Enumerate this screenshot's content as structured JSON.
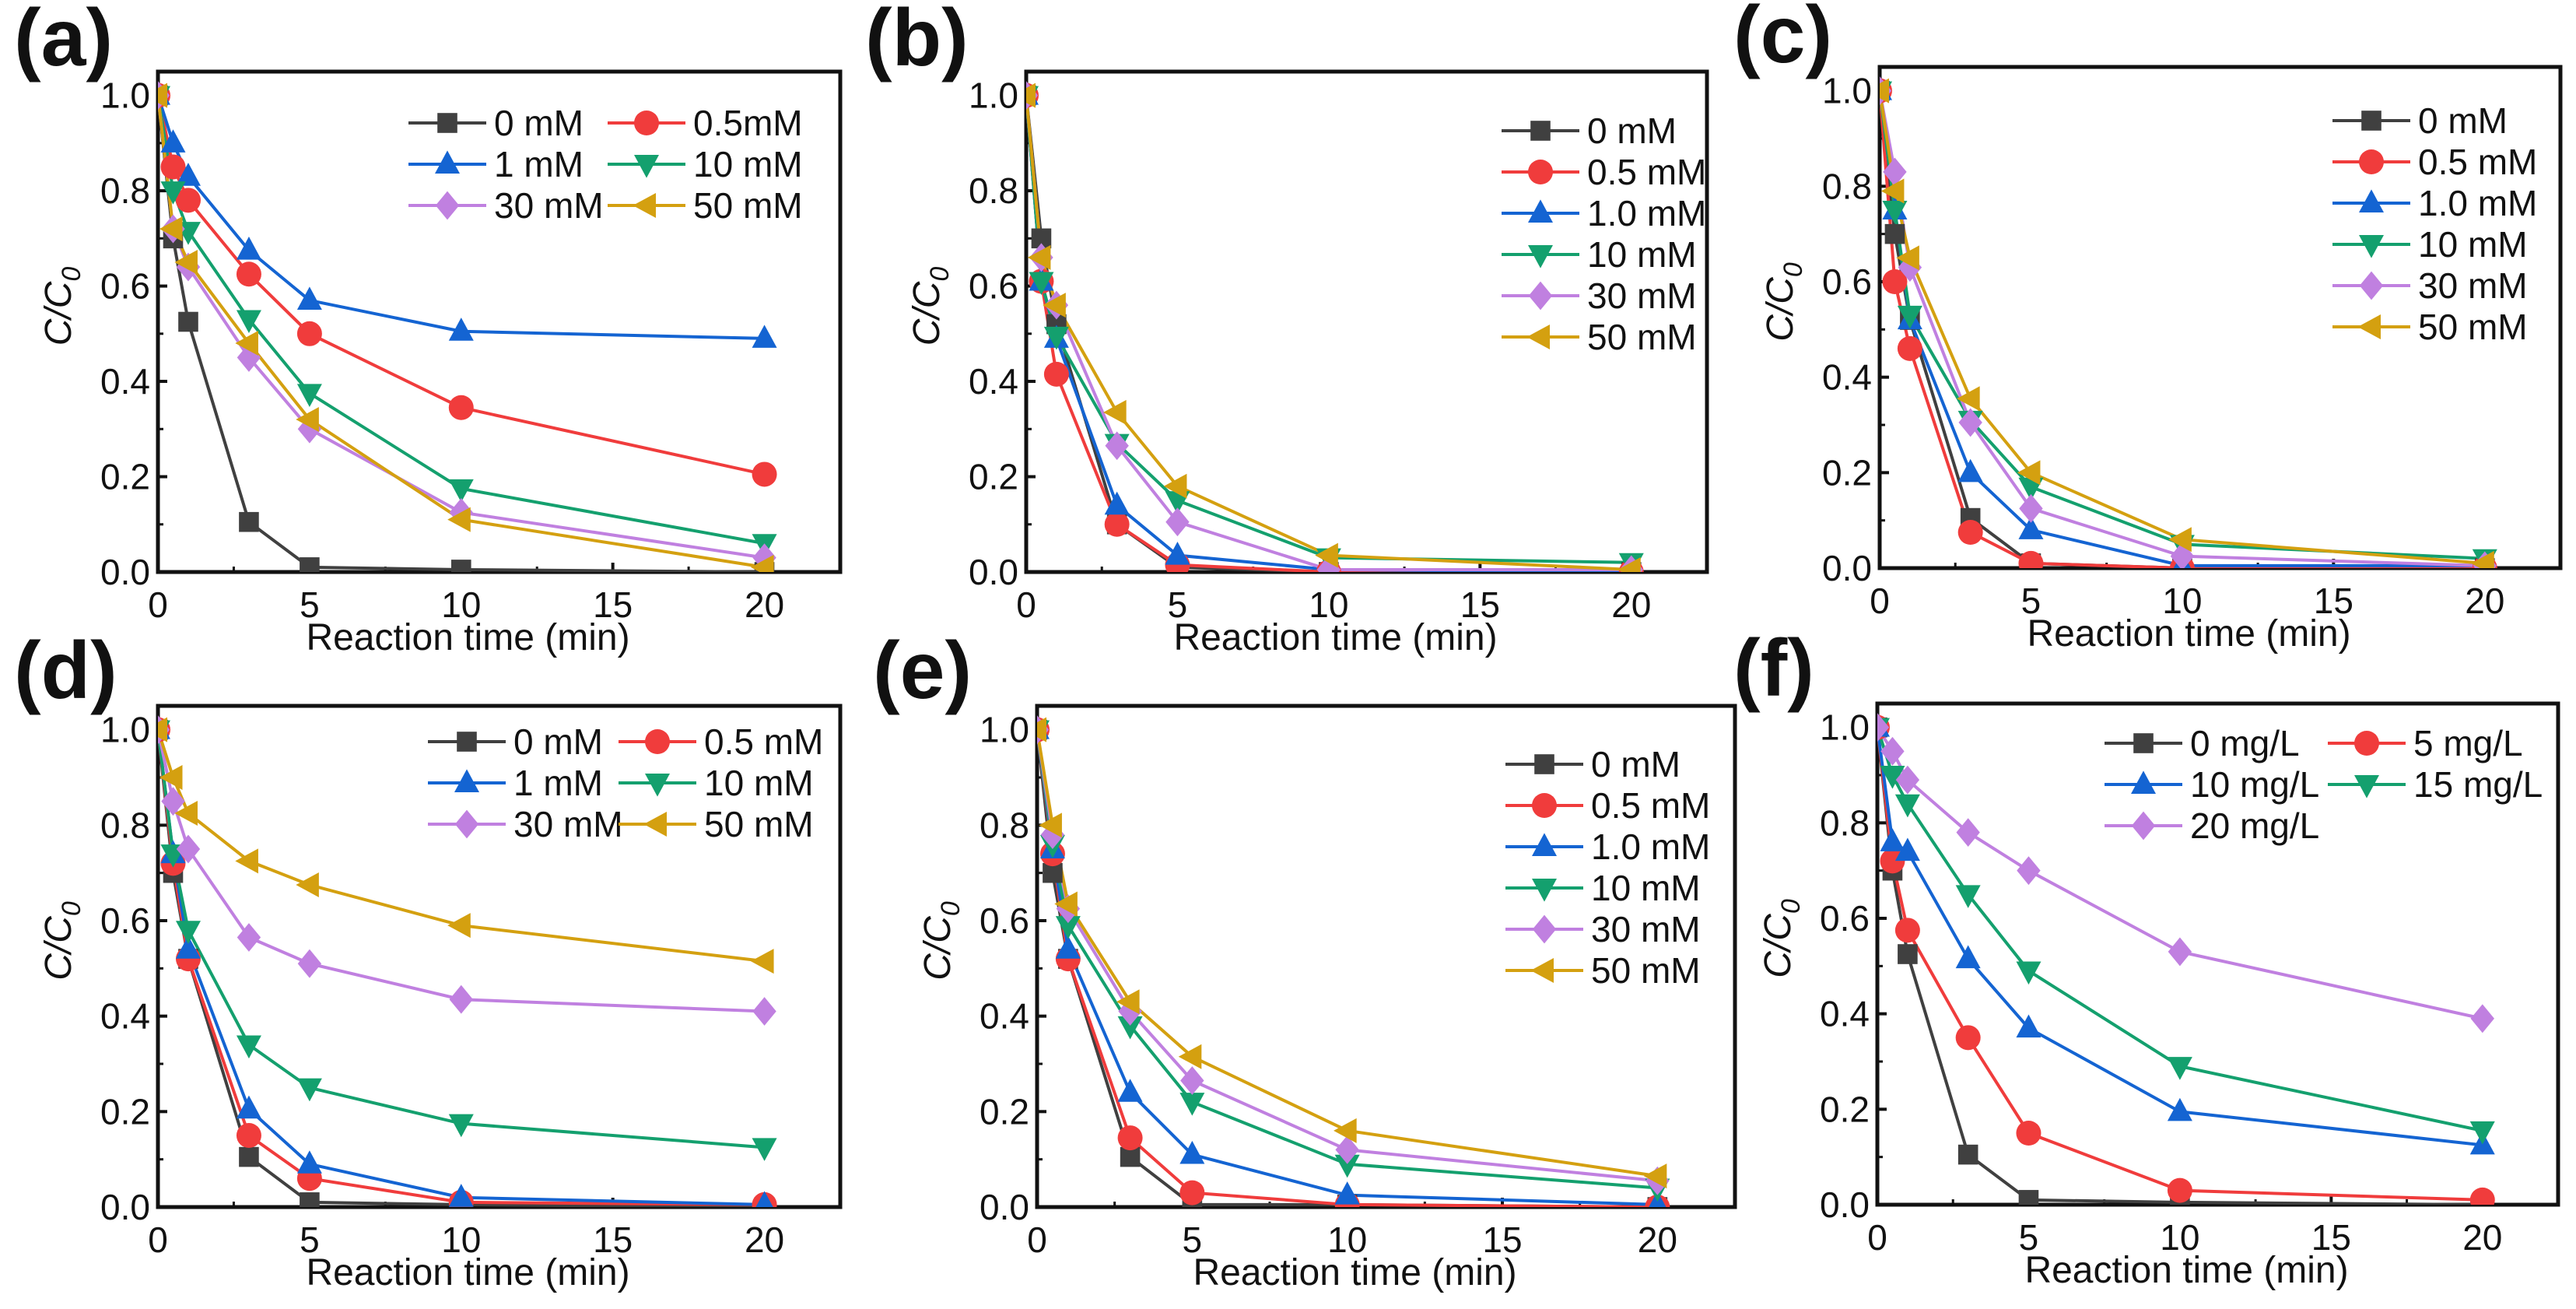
{
  "chart_data": [
    {
      "type": "line",
      "panel_label": "(a)",
      "xlabel": "Reaction time (min)",
      "ylabel": "C/C0",
      "ylabel_main": "C/C",
      "ylabel_sub": "0",
      "xlim": [
        0,
        22.5
      ],
      "ylim": [
        0,
        1.05
      ],
      "xticks": [
        "0",
        "5",
        "10",
        "15",
        "20"
      ],
      "yticks": [
        "0.0",
        "0.2",
        "0.4",
        "0.6",
        "0.8",
        "1.0"
      ],
      "legend_placement": "top-right",
      "legend_layout": "two-column",
      "x": [
        0,
        0.5,
        1,
        3,
        5,
        10,
        20
      ],
      "series": [
        {
          "name": "0  mM",
          "marker": "square",
          "color": "#404040",
          "values": [
            1,
            0.7,
            0.525,
            0.105,
            0.01,
            0.005,
            0.0
          ]
        },
        {
          "name": "0.5mM",
          "marker": "circle",
          "color": "#f03c3c",
          "values": [
            1,
            0.85,
            0.78,
            0.625,
            0.5,
            0.345,
            0.205
          ]
        },
        {
          "name": "1  mM",
          "marker": "triangle-up",
          "color": "#1464d2",
          "values": [
            1,
            0.9,
            0.83,
            0.675,
            0.57,
            0.505,
            0.49
          ]
        },
        {
          "name": "10 mM",
          "marker": "triangle-down",
          "color": "#14a06e",
          "values": [
            1,
            0.8,
            0.715,
            0.53,
            0.375,
            0.175,
            0.06
          ]
        },
        {
          "name": "30 mM",
          "marker": "diamond",
          "color": "#c080e0",
          "values": [
            1,
            0.72,
            0.64,
            0.45,
            0.3,
            0.125,
            0.03
          ]
        },
        {
          "name": "50 mM",
          "marker": "triangle-left",
          "color": "#d4a010",
          "values": [
            1,
            0.72,
            0.65,
            0.48,
            0.32,
            0.11,
            0.01
          ]
        }
      ]
    },
    {
      "type": "line",
      "panel_label": "(b)",
      "xlabel": "Reaction time (min)",
      "ylabel": "C/C0",
      "ylabel_main": "C/C",
      "ylabel_sub": "0",
      "xlim": [
        0,
        22.5
      ],
      "ylim": [
        0,
        1.05
      ],
      "xticks": [
        "0",
        "5",
        "10",
        "15",
        "20"
      ],
      "yticks": [
        "0.0",
        "0.2",
        "0.4",
        "0.6",
        "0.8",
        "1.0"
      ],
      "legend_placement": "top-right",
      "legend_layout": "one-column",
      "x": [
        0,
        0.5,
        1,
        3,
        5,
        10,
        20
      ],
      "series": [
        {
          "name": "0  mM",
          "marker": "square",
          "color": "#404040",
          "values": [
            1,
            0.7,
            0.52,
            0.1,
            0.01,
            0.0,
            0.0
          ]
        },
        {
          "name": "0.5 mM",
          "marker": "circle",
          "color": "#f03c3c",
          "values": [
            1,
            0.61,
            0.415,
            0.1,
            0.015,
            0.0,
            0.0
          ]
        },
        {
          "name": "1.0 mM",
          "marker": "triangle-up",
          "color": "#1464d2",
          "values": [
            1,
            0.61,
            0.49,
            0.14,
            0.035,
            0.005,
            0.0
          ]
        },
        {
          "name": "10 mM",
          "marker": "triangle-down",
          "color": "#14a06e",
          "values": [
            1,
            0.61,
            0.495,
            0.27,
            0.15,
            0.03,
            0.02
          ]
        },
        {
          "name": "30 mM",
          "marker": "diamond",
          "color": "#c080e0",
          "values": [
            1,
            0.66,
            0.56,
            0.265,
            0.105,
            0.005,
            0.005
          ]
        },
        {
          "name": "50 mM",
          "marker": "triangle-left",
          "color": "#d4a010",
          "values": [
            1,
            0.66,
            0.56,
            0.335,
            0.18,
            0.035,
            0.005
          ]
        }
      ]
    },
    {
      "type": "line",
      "panel_label": "(c)",
      "xlabel": "Reaction time (min)",
      "ylabel": "C/C0",
      "ylabel_main": "C/C",
      "ylabel_sub": "0",
      "xlim": [
        0,
        22.5
      ],
      "ylim": [
        0,
        1.05
      ],
      "xticks": [
        "0",
        "5",
        "10",
        "15",
        "20"
      ],
      "yticks": [
        "0.0",
        "0.2",
        "0.4",
        "0.6",
        "0.8",
        "1.0"
      ],
      "legend_placement": "top-right",
      "legend_layout": "one-column",
      "x": [
        0,
        0.5,
        1,
        3,
        5,
        10,
        20
      ],
      "series": [
        {
          "name": "0   mM",
          "marker": "square",
          "color": "#404040",
          "values": [
            1,
            0.7,
            0.52,
            0.105,
            0.01,
            0.0,
            0.0
          ]
        },
        {
          "name": "0.5 mM",
          "marker": "circle",
          "color": "#f03c3c",
          "values": [
            1,
            0.6,
            0.46,
            0.075,
            0.01,
            0.0,
            0.0
          ]
        },
        {
          "name": "1.0 mM",
          "marker": "triangle-up",
          "color": "#1464d2",
          "values": [
            1,
            0.75,
            0.52,
            0.2,
            0.08,
            0.005,
            0.005
          ]
        },
        {
          "name": "10  mM",
          "marker": "triangle-down",
          "color": "#14a06e",
          "values": [
            1,
            0.75,
            0.53,
            0.31,
            0.17,
            0.05,
            0.02
          ]
        },
        {
          "name": "30  mM",
          "marker": "diamond",
          "color": "#c080e0",
          "values": [
            1,
            0.83,
            0.63,
            0.305,
            0.125,
            0.025,
            0.005
          ]
        },
        {
          "name": "50  mM",
          "marker": "triangle-left",
          "color": "#d4a010",
          "values": [
            1,
            0.79,
            0.65,
            0.355,
            0.2,
            0.06,
            0.01
          ]
        }
      ]
    },
    {
      "type": "line",
      "panel_label": "(d)",
      "xlabel": "Reaction time (min)",
      "ylabel": "C/C0",
      "ylabel_main": "C/C",
      "ylabel_sub": "0",
      "xlim": [
        0,
        22.5
      ],
      "ylim": [
        0,
        1.05
      ],
      "xticks": [
        "0",
        "5",
        "10",
        "15",
        "20"
      ],
      "yticks": [
        "0.0",
        "0.2",
        "0.4",
        "0.6",
        "0.8",
        "1.0"
      ],
      "legend_placement": "top-right",
      "legend_layout": "two-column",
      "x": [
        0,
        0.5,
        1,
        3,
        5,
        10,
        20
      ],
      "series": [
        {
          "name": "0  mM",
          "marker": "square",
          "color": "#404040",
          "values": [
            1,
            0.7,
            0.52,
            0.105,
            0.01,
            0.005,
            0.0
          ]
        },
        {
          "name": "0.5 mM",
          "marker": "circle",
          "color": "#f03c3c",
          "values": [
            1,
            0.72,
            0.52,
            0.15,
            0.06,
            0.01,
            0.005
          ]
        },
        {
          "name": "1  mM",
          "marker": "triangle-up",
          "color": "#1464d2",
          "values": [
            1,
            0.74,
            0.54,
            0.205,
            0.09,
            0.02,
            0.005
          ]
        },
        {
          "name": "10  mM",
          "marker": "triangle-down",
          "color": "#14a06e",
          "values": [
            1,
            0.74,
            0.58,
            0.34,
            0.25,
            0.175,
            0.125
          ]
        },
        {
          "name": "30 mM",
          "marker": "diamond",
          "color": "#c080e0",
          "values": [
            1,
            0.85,
            0.75,
            0.565,
            0.51,
            0.435,
            0.41
          ]
        },
        {
          "name": "50  mM",
          "marker": "triangle-left",
          "color": "#d4a010",
          "values": [
            1,
            0.9,
            0.825,
            0.725,
            0.675,
            0.59,
            0.515
          ]
        }
      ]
    },
    {
      "type": "line",
      "panel_label": "(e)",
      "xlabel": "Reaction time (min)",
      "ylabel": "C/C0",
      "ylabel_main": "C/C",
      "ylabel_sub": "0",
      "xlim": [
        0,
        22.5
      ],
      "ylim": [
        0,
        1.05
      ],
      "xticks": [
        "0",
        "5",
        "10",
        "15",
        "20"
      ],
      "yticks": [
        "0.0",
        "0.2",
        "0.4",
        "0.6",
        "0.8",
        "1.0"
      ],
      "legend_placement": "top-right",
      "legend_layout": "one-column",
      "x": [
        0,
        0.5,
        1,
        3,
        5,
        10,
        20
      ],
      "series": [
        {
          "name": "0 mM",
          "marker": "square",
          "color": "#404040",
          "values": [
            1,
            0.7,
            0.52,
            0.105,
            0.005,
            0.005,
            0.0
          ]
        },
        {
          "name": "0.5 mM",
          "marker": "circle",
          "color": "#f03c3c",
          "values": [
            1,
            0.74,
            0.52,
            0.145,
            0.03,
            0.005,
            0.0
          ]
        },
        {
          "name": "1.0 mM",
          "marker": "triangle-up",
          "color": "#1464d2",
          "values": [
            1,
            0.75,
            0.54,
            0.24,
            0.11,
            0.025,
            0.005
          ]
        },
        {
          "name": "10 mM",
          "marker": "triangle-down",
          "color": "#14a06e",
          "values": [
            1,
            0.76,
            0.59,
            0.38,
            0.22,
            0.09,
            0.04
          ]
        },
        {
          "name": "30 mM",
          "marker": "diamond",
          "color": "#c080e0",
          "values": [
            1,
            0.78,
            0.625,
            0.41,
            0.265,
            0.12,
            0.055
          ]
        },
        {
          "name": "50 mM",
          "marker": "triangle-left",
          "color": "#d4a010",
          "values": [
            1,
            0.8,
            0.635,
            0.43,
            0.315,
            0.16,
            0.065
          ]
        }
      ]
    },
    {
      "type": "line",
      "panel_label": "(f)",
      "xlabel": "Reaction time (min)",
      "ylabel": "C/C0",
      "ylabel_main": "C/C",
      "ylabel_sub": "0",
      "xlim": [
        0,
        22.5
      ],
      "ylim": [
        0,
        1.05
      ],
      "xticks": [
        "0",
        "5",
        "10",
        "15",
        "20"
      ],
      "yticks": [
        "0.0",
        "0.2",
        "0.4",
        "0.6",
        "0.8",
        "1.0"
      ],
      "legend_placement": "top-right",
      "legend_layout": "two-column",
      "x": [
        0,
        0.5,
        1,
        3,
        5,
        10,
        20
      ],
      "series": [
        {
          "name": "0  mg/L",
          "marker": "square",
          "color": "#404040",
          "values": [
            1,
            0.7,
            0.525,
            0.105,
            0.01,
            0.005,
            0.0
          ]
        },
        {
          "name": "5  mg/L",
          "marker": "circle",
          "color": "#f03c3c",
          "values": [
            1,
            0.72,
            0.575,
            0.35,
            0.15,
            0.03,
            0.01
          ]
        },
        {
          "name": "10 mg/L",
          "marker": "triangle-up",
          "color": "#1464d2",
          "values": [
            1,
            0.76,
            0.74,
            0.515,
            0.37,
            0.195,
            0.125
          ]
        },
        {
          "name": "15 mg/L",
          "marker": "triangle-down",
          "color": "#14a06e",
          "values": [
            1,
            0.9,
            0.84,
            0.65,
            0.49,
            0.29,
            0.155
          ]
        },
        {
          "name": "20 mg/L",
          "marker": "diamond",
          "color": "#c080e0",
          "values": [
            1,
            0.95,
            0.89,
            0.78,
            0.7,
            0.53,
            0.39
          ]
        }
      ]
    }
  ]
}
